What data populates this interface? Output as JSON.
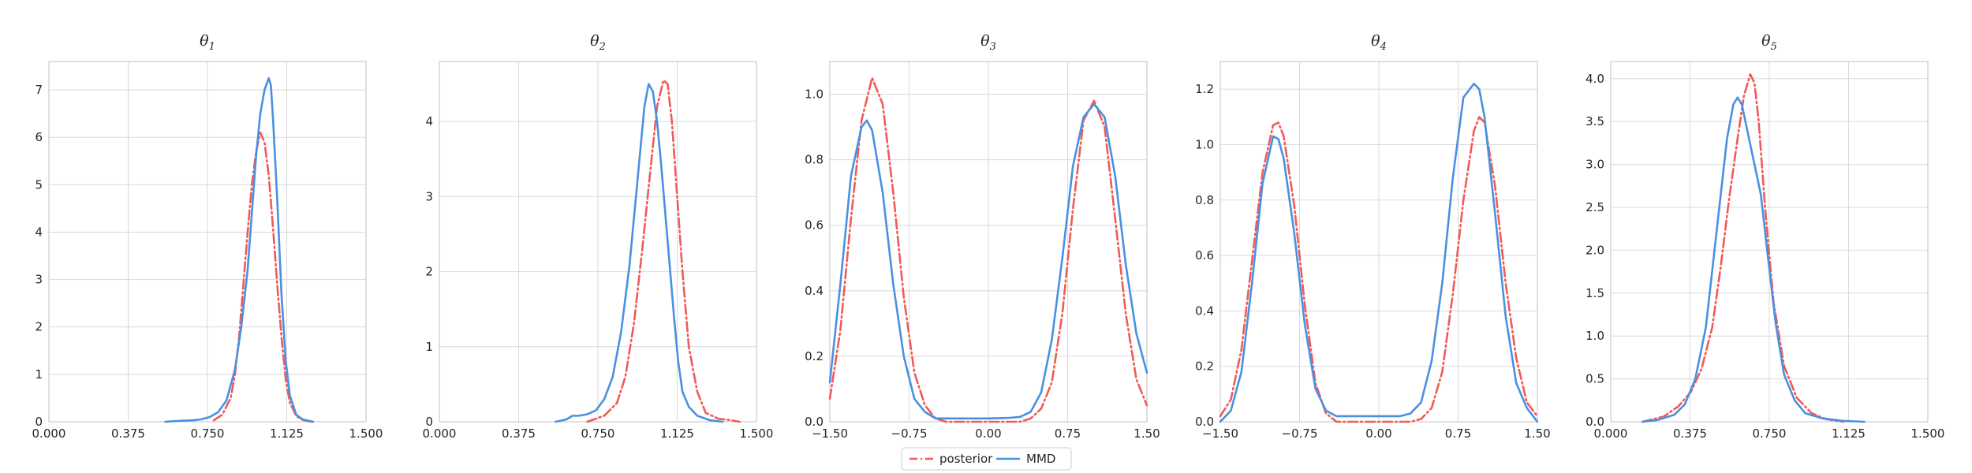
{
  "figure": {
    "legend": {
      "placement": "bottom-center",
      "entries": [
        {
          "label": "posterior",
          "color": "#f05b57",
          "style": "dash-dot"
        },
        {
          "label": "MMD",
          "color": "#4a90e2",
          "style": "solid"
        }
      ]
    },
    "grid": true
  },
  "chart_data": [
    {
      "type": "line",
      "title": "θ1",
      "title_symbol": "θ",
      "title_sub": "1",
      "xlim": [
        0,
        1.5
      ],
      "ylim": [
        0,
        7.6
      ],
      "xticks": [
        "0.000",
        "0.375",
        "0.750",
        "1.125",
        "1.500"
      ],
      "yticks": [
        "0",
        "1",
        "2",
        "3",
        "4",
        "5",
        "6",
        "7"
      ],
      "series": [
        {
          "name": "posterior",
          "color": "#f05b57",
          "dash": true,
          "x": [
            0.78,
            0.82,
            0.86,
            0.88,
            0.9,
            0.92,
            0.94,
            0.96,
            0.98,
            1.0,
            1.02,
            1.04,
            1.06,
            1.08,
            1.1,
            1.12,
            1.14,
            1.17,
            1.2,
            1.24
          ],
          "y": [
            0.03,
            0.15,
            0.5,
            1.0,
            1.8,
            2.9,
            4.0,
            5.0,
            5.7,
            6.1,
            5.9,
            5.2,
            4.1,
            2.9,
            1.8,
            0.9,
            0.4,
            0.12,
            0.04,
            0.0
          ]
        },
        {
          "name": "MMD",
          "color": "#4a90e2",
          "dash": false,
          "x": [
            0.55,
            0.62,
            0.68,
            0.72,
            0.76,
            0.8,
            0.84,
            0.88,
            0.91,
            0.94,
            0.96,
            0.98,
            1.0,
            1.02,
            1.04,
            1.05,
            1.06,
            1.08,
            1.1,
            1.12,
            1.14,
            1.17,
            1.2,
            1.25
          ],
          "y": [
            0.0,
            0.02,
            0.03,
            0.05,
            0.1,
            0.2,
            0.45,
            1.1,
            2.0,
            3.2,
            4.4,
            5.6,
            6.5,
            7.0,
            7.25,
            7.1,
            6.4,
            4.7,
            2.7,
            1.3,
            0.55,
            0.15,
            0.05,
            0.0
          ]
        }
      ]
    },
    {
      "type": "line",
      "title": "θ2",
      "title_symbol": "θ",
      "title_sub": "2",
      "xlim": [
        0,
        1.5
      ],
      "ylim": [
        0,
        4.8
      ],
      "xticks": [
        "0.000",
        "0.375",
        "0.750",
        "1.125",
        "1.500"
      ],
      "yticks": [
        "0",
        "1",
        "2",
        "3",
        "4"
      ],
      "series": [
        {
          "name": "posterior",
          "color": "#f05b57",
          "dash": true,
          "x": [
            0.7,
            0.78,
            0.84,
            0.88,
            0.92,
            0.96,
            1.0,
            1.03,
            1.06,
            1.08,
            1.1,
            1.12,
            1.15,
            1.18,
            1.22,
            1.26,
            1.32,
            1.38,
            1.42
          ],
          "y": [
            0.0,
            0.08,
            0.25,
            0.6,
            1.3,
            2.3,
            3.4,
            4.2,
            4.55,
            4.5,
            4.0,
            3.2,
            2.0,
            1.0,
            0.4,
            0.12,
            0.04,
            0.02,
            0.0
          ]
        },
        {
          "name": "MMD",
          "color": "#4a90e2",
          "dash": false,
          "x": [
            0.55,
            0.6,
            0.63,
            0.66,
            0.7,
            0.74,
            0.78,
            0.82,
            0.86,
            0.9,
            0.94,
            0.97,
            0.99,
            1.01,
            1.03,
            1.05,
            1.08,
            1.11,
            1.13,
            1.15,
            1.18,
            1.22,
            1.28,
            1.34
          ],
          "y": [
            0.0,
            0.03,
            0.08,
            0.08,
            0.1,
            0.15,
            0.3,
            0.6,
            1.2,
            2.1,
            3.3,
            4.2,
            4.5,
            4.4,
            4.0,
            3.4,
            2.4,
            1.4,
            0.8,
            0.4,
            0.2,
            0.08,
            0.02,
            0.0
          ]
        }
      ]
    },
    {
      "type": "line",
      "title": "θ3",
      "title_symbol": "θ",
      "title_sub": "3",
      "xlim": [
        -1.5,
        1.5
      ],
      "ylim": [
        0,
        1.1
      ],
      "xticks": [
        "−1.50",
        "−0.75",
        "0.00",
        "0.75",
        "1.50"
      ],
      "yticks": [
        "0.0",
        "0.2",
        "0.4",
        "0.6",
        "0.8",
        "1.0"
      ],
      "series": [
        {
          "name": "posterior",
          "color": "#f05b57",
          "dash": true,
          "x": [
            -1.5,
            -1.4,
            -1.3,
            -1.2,
            -1.1,
            -1.0,
            -0.9,
            -0.8,
            -0.7,
            -0.6,
            -0.5,
            -0.4,
            0.3,
            0.4,
            0.5,
            0.6,
            0.7,
            0.8,
            0.9,
            1.0,
            1.1,
            1.2,
            1.3,
            1.4,
            1.5
          ],
          "y": [
            0.07,
            0.28,
            0.62,
            0.92,
            1.05,
            0.97,
            0.7,
            0.38,
            0.15,
            0.05,
            0.01,
            0.0,
            0.0,
            0.01,
            0.04,
            0.12,
            0.33,
            0.65,
            0.92,
            0.98,
            0.9,
            0.62,
            0.33,
            0.13,
            0.05
          ]
        },
        {
          "name": "MMD",
          "color": "#4a90e2",
          "dash": false,
          "x": [
            -1.5,
            -1.4,
            -1.3,
            -1.2,
            -1.15,
            -1.1,
            -1.0,
            -0.9,
            -0.8,
            -0.7,
            -0.6,
            -0.5,
            -0.4,
            0.0,
            0.2,
            0.3,
            0.4,
            0.5,
            0.6,
            0.7,
            0.8,
            0.9,
            1.0,
            1.1,
            1.2,
            1.3,
            1.4,
            1.5
          ],
          "y": [
            0.12,
            0.42,
            0.75,
            0.9,
            0.92,
            0.89,
            0.7,
            0.42,
            0.2,
            0.07,
            0.03,
            0.01,
            0.01,
            0.01,
            0.012,
            0.015,
            0.03,
            0.09,
            0.25,
            0.5,
            0.78,
            0.93,
            0.97,
            0.93,
            0.75,
            0.48,
            0.27,
            0.15
          ]
        }
      ]
    },
    {
      "type": "line",
      "title": "θ4",
      "title_symbol": "θ",
      "title_sub": "4",
      "xlim": [
        -1.5,
        1.5
      ],
      "ylim": [
        0,
        1.3
      ],
      "xticks": [
        "−1.50",
        "−0.75",
        "0.00",
        "0.75",
        "1.50"
      ],
      "yticks": [
        "0.0",
        "0.2",
        "0.4",
        "0.6",
        "0.8",
        "1.0",
        "1.2"
      ],
      "series": [
        {
          "name": "posterior",
          "color": "#f05b57",
          "dash": true,
          "x": [
            -1.5,
            -1.4,
            -1.3,
            -1.2,
            -1.1,
            -1.0,
            -0.95,
            -0.9,
            -0.8,
            -0.7,
            -0.6,
            -0.5,
            -0.4,
            0.3,
            0.4,
            0.5,
            0.6,
            0.7,
            0.8,
            0.9,
            0.95,
            1.0,
            1.1,
            1.2,
            1.3,
            1.4,
            1.5
          ],
          "y": [
            0.02,
            0.08,
            0.26,
            0.58,
            0.9,
            1.07,
            1.08,
            1.03,
            0.78,
            0.42,
            0.14,
            0.03,
            0.0,
            0.0,
            0.01,
            0.05,
            0.18,
            0.46,
            0.8,
            1.05,
            1.1,
            1.08,
            0.85,
            0.5,
            0.23,
            0.07,
            0.02
          ]
        },
        {
          "name": "MMD",
          "color": "#4a90e2",
          "dash": false,
          "x": [
            -1.5,
            -1.4,
            -1.3,
            -1.2,
            -1.1,
            -1.0,
            -0.95,
            -0.9,
            -0.8,
            -0.7,
            -0.6,
            -0.5,
            -0.4,
            0.0,
            0.2,
            0.3,
            0.4,
            0.5,
            0.6,
            0.7,
            0.8,
            0.9,
            0.95,
            1.0,
            1.1,
            1.2,
            1.3,
            1.4,
            1.5
          ],
          "y": [
            0.0,
            0.04,
            0.18,
            0.5,
            0.86,
            1.03,
            1.02,
            0.95,
            0.68,
            0.35,
            0.12,
            0.04,
            0.02,
            0.02,
            0.02,
            0.03,
            0.07,
            0.22,
            0.5,
            0.88,
            1.17,
            1.22,
            1.2,
            1.1,
            0.75,
            0.38,
            0.14,
            0.05,
            0.0
          ]
        }
      ]
    },
    {
      "type": "line",
      "title": "θ5",
      "title_symbol": "θ",
      "title_sub": "5",
      "xlim": [
        0,
        1.5
      ],
      "ylim": [
        0,
        4.2
      ],
      "xticks": [
        "0.000",
        "0.375",
        "0.750",
        "1.125",
        "1.500"
      ],
      "yticks": [
        "0.0",
        "0.5",
        "1.0",
        "1.5",
        "2.0",
        "2.5",
        "3.0",
        "3.5",
        "4.0"
      ],
      "series": [
        {
          "name": "posterior",
          "color": "#f05b57",
          "dash": true,
          "x": [
            0.15,
            0.25,
            0.32,
            0.38,
            0.43,
            0.48,
            0.52,
            0.56,
            0.6,
            0.63,
            0.66,
            0.68,
            0.7,
            0.73,
            0.77,
            0.82,
            0.88,
            0.95,
            1.02,
            1.1
          ],
          "y": [
            0.0,
            0.06,
            0.18,
            0.35,
            0.62,
            1.1,
            1.8,
            2.6,
            3.3,
            3.8,
            4.05,
            3.95,
            3.5,
            2.5,
            1.4,
            0.65,
            0.28,
            0.1,
            0.03,
            0.0
          ]
        },
        {
          "name": "MMD",
          "color": "#4a90e2",
          "dash": false,
          "x": [
            0.15,
            0.22,
            0.3,
            0.35,
            0.4,
            0.45,
            0.5,
            0.55,
            0.58,
            0.6,
            0.62,
            0.65,
            0.68,
            0.71,
            0.74,
            0.78,
            0.82,
            0.87,
            0.92,
            1.0,
            1.1,
            1.2
          ],
          "y": [
            0.0,
            0.02,
            0.08,
            0.2,
            0.5,
            1.1,
            2.2,
            3.3,
            3.7,
            3.78,
            3.7,
            3.35,
            3.0,
            2.65,
            2.0,
            1.15,
            0.55,
            0.25,
            0.1,
            0.04,
            0.01,
            0.0
          ]
        }
      ]
    }
  ]
}
